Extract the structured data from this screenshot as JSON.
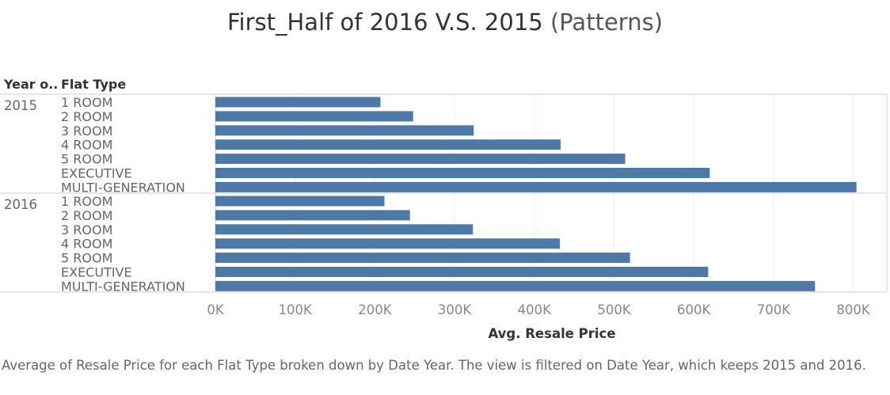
{
  "title": {
    "main": "First_Half of 2016 V.S. 2015",
    "sub": "(Patterns)"
  },
  "headers": {
    "year": "Year o..",
    "flat_type": "Flat Type"
  },
  "caption": "Average of Resale Price for each Flat Type broken down by Date Year. The view is filtered on Date Year, which keeps 2015 and 2016.",
  "colors": {
    "bar": "#4e79a7",
    "axis_text": "#888888",
    "label_text": "#666666",
    "gridline": "#eeeeee",
    "border": "#cccccc"
  },
  "chart_data": {
    "type": "bar",
    "orientation": "horizontal",
    "xlabel": "Avg. Resale Price",
    "xlim": [
      0,
      850000
    ],
    "xticks": [
      0,
      100000,
      200000,
      300000,
      400000,
      500000,
      600000,
      700000,
      800000
    ],
    "xtick_labels": [
      "0K",
      "100K",
      "200K",
      "300K",
      "400K",
      "500K",
      "600K",
      "700K",
      "800K"
    ],
    "grid": true,
    "groups": [
      {
        "year": "2015",
        "categories": [
          "1 ROOM",
          "2 ROOM",
          "3 ROOM",
          "4 ROOM",
          "5 ROOM",
          "EXECUTIVE",
          "MULTI-GENERATION"
        ],
        "values": [
          207000,
          248000,
          324000,
          433000,
          514000,
          620000,
          804000
        ]
      },
      {
        "year": "2016",
        "categories": [
          "1 ROOM",
          "2 ROOM",
          "3 ROOM",
          "4 ROOM",
          "5 ROOM",
          "EXECUTIVE",
          "MULTI-GENERATION"
        ],
        "values": [
          212000,
          244000,
          323000,
          432000,
          520000,
          618000,
          752000
        ]
      }
    ]
  }
}
